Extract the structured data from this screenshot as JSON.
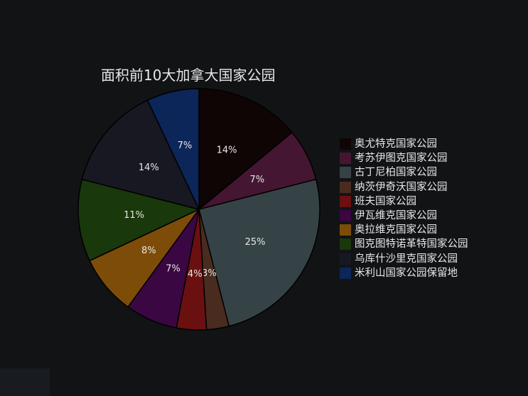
{
  "chart_data": {
    "type": "pie",
    "title": "面积前10大加拿大国家公园",
    "legend_position": "right",
    "categories": [
      "奥尤特克国家公园",
      "考苏伊图克国家公园",
      "古丁尼柏国家公园",
      "纳茨伊奇沃国家公园",
      "班夫国家公园",
      "伊瓦维克国家公园",
      "奥拉维克国家公园",
      "图克图特诺革特国家公园",
      "乌库什沙里克国家公园",
      "米利山国家公园保留地"
    ],
    "values": [
      14,
      7,
      25,
      3,
      4,
      7,
      8,
      11,
      14,
      7
    ],
    "labels": [
      "14%",
      "7%",
      "25%",
      "3%",
      "4%",
      "7%",
      "8%",
      "11%",
      "14%",
      "7%"
    ],
    "colors": [
      "#0f0505",
      "#451631",
      "#364346",
      "#4a2b20",
      "#6b1010",
      "#3a0742",
      "#7d4c08",
      "#19380b",
      "#181823",
      "#0c2659"
    ]
  }
}
